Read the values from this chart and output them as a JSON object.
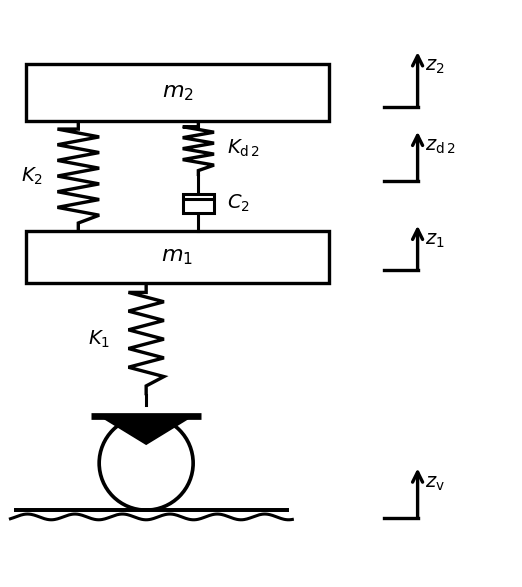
{
  "bg_color": "#ffffff",
  "line_color": "#000000",
  "lw": 2.2,
  "fig_width": 5.22,
  "fig_height": 5.87,
  "labels": {
    "m2": "$m_{2}$",
    "m1": "$m_{1}$",
    "K2": "$K_{2}$",
    "Kd2": "$K_{\\mathrm{d}\\,2}$",
    "C2": "$C_{2}$",
    "K1": "$K_{1}$",
    "z2": "$z_{2}$",
    "zd2": "$z_{\\mathrm{d}\\,2}$",
    "z1": "$z_{1}$",
    "zv": "$z_{\\mathrm{v}}$"
  }
}
